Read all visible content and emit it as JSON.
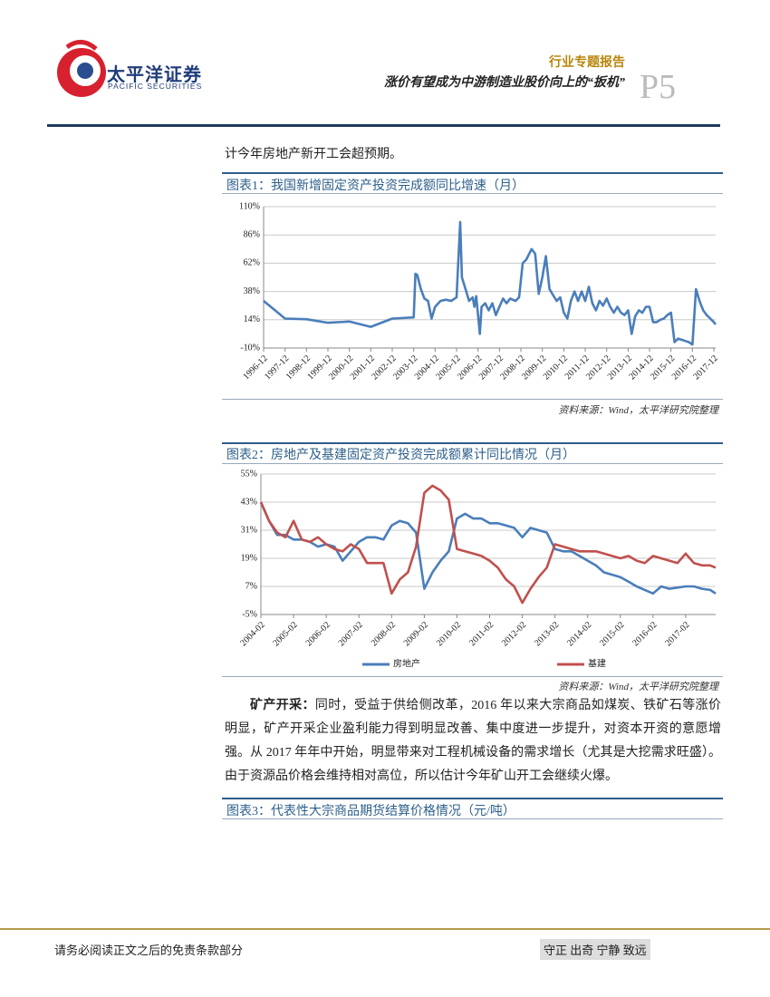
{
  "header": {
    "logo_cn": "太平洋证券",
    "logo_en": "PACIFIC SECURITIES",
    "report_type": "行业专题报告",
    "report_title": "涨价有望成为中游制造业股价向上的“扳机”",
    "page": "P5"
  },
  "intro": "计今年房地产新开工会超预期。",
  "chart1": {
    "type": "line",
    "title": "图表1：我国新增固定资产投资完成额同比增速（月）",
    "source": "资料来源：Wind，太平洋研究院整理",
    "ylim": [
      -10,
      110
    ],
    "yticks": [
      {
        "value": -10,
        "label": "-10%"
      },
      {
        "value": 14,
        "label": "14%"
      },
      {
        "value": 38,
        "label": "38%"
      },
      {
        "value": 62,
        "label": "62%"
      },
      {
        "value": 86,
        "label": "86%"
      },
      {
        "value": 110,
        "label": "110%"
      }
    ],
    "xlim": [
      "1996-12",
      "2018-01"
    ],
    "xticks": [
      "1996-12",
      "1997-12",
      "1998-12",
      "1999-12",
      "2000-12",
      "2001-12",
      "2002-12",
      "2003-12",
      "2004-12",
      "2005-12",
      "2006-12",
      "2007-12",
      "2008-12",
      "2009-12",
      "2010-12",
      "2011-12",
      "2012-12",
      "2013-12",
      "2014-12",
      "2015-12",
      "2016-12",
      "2017-12"
    ],
    "grid": true,
    "x": [
      "1996-12",
      "1997-12",
      "1998-12",
      "1999-12",
      "2000-12",
      "2001-12",
      "2002-12",
      "2003-12",
      "2004-01",
      "2004-02",
      "2004-04",
      "2004-06",
      "2004-08",
      "2004-10",
      "2004-12",
      "2005-03",
      "2005-06",
      "2005-09",
      "2005-12",
      "2006-02",
      "2006-03",
      "2006-05",
      "2006-07",
      "2006-09",
      "2006-10",
      "2006-11",
      "2007-01",
      "2007-02",
      "2007-04",
      "2007-06",
      "2007-08",
      "2007-10",
      "2007-12",
      "2008-02",
      "2008-04",
      "2008-06",
      "2008-09",
      "2008-11",
      "2009-01",
      "2009-03",
      "2009-06",
      "2009-08",
      "2009-10",
      "2009-12",
      "2010-02",
      "2010-04",
      "2010-06",
      "2010-08",
      "2010-10",
      "2010-12",
      "2011-02",
      "2011-04",
      "2011-06",
      "2011-08",
      "2011-10",
      "2011-12",
      "2012-02",
      "2012-04",
      "2012-06",
      "2012-08",
      "2012-10",
      "2012-12",
      "2013-02",
      "2013-04",
      "2013-06",
      "2013-08",
      "2013-10",
      "2013-12",
      "2014-02",
      "2014-04",
      "2014-06",
      "2014-08",
      "2014-10",
      "2014-12",
      "2015-02",
      "2015-04",
      "2015-06",
      "2015-08",
      "2015-10",
      "2015-12",
      "2016-02",
      "2016-04",
      "2016-06",
      "2016-08",
      "2016-10",
      "2016-12",
      "2017-02",
      "2017-04",
      "2017-06",
      "2017-08",
      "2017-10",
      "2017-12",
      "2018-01"
    ],
    "series": [
      {
        "color": "#4a7ebb",
        "values": [
          30,
          15,
          14.5,
          11.5,
          12.5,
          8,
          15,
          16,
          53,
          52,
          40,
          32,
          30,
          15,
          25,
          30,
          31,
          30,
          33,
          97,
          50,
          40,
          30,
          33,
          25,
          34,
          2,
          25,
          28,
          22,
          28,
          18,
          25,
          32,
          28,
          32,
          30,
          33,
          62,
          65,
          74,
          70,
          36,
          50,
          68,
          40,
          35,
          30,
          33,
          20,
          15,
          30,
          38,
          30,
          38,
          30,
          42,
          28,
          22,
          30,
          26,
          32,
          25,
          20,
          25,
          20,
          18,
          22,
          2,
          17,
          22,
          20,
          25,
          25,
          12,
          12,
          14,
          15,
          18,
          20,
          -5,
          -2,
          -3,
          -4,
          -5,
          -7,
          40,
          30,
          22,
          18,
          15,
          12,
          10
        ]
      }
    ]
  },
  "chart2": {
    "type": "line",
    "title": "图表2：房地产及基建固定资产投资完成额累计同比情况（月）",
    "source": "资料来源：Wind，太平洋研究院整理",
    "ylim": [
      -5,
      55
    ],
    "yticks": [
      {
        "value": -5,
        "label": "-5%"
      },
      {
        "value": 7,
        "label": "7%"
      },
      {
        "value": 19,
        "label": "19%"
      },
      {
        "value": 31,
        "label": "31%"
      },
      {
        "value": 43,
        "label": "43%"
      },
      {
        "value": 55,
        "label": "55%"
      }
    ],
    "xlim": [
      "2004-02",
      "2018-01"
    ],
    "xticks": [
      "2004-02",
      "2005-02",
      "2006-02",
      "2007-02",
      "2008-02",
      "2009-02",
      "2010-02",
      "2011-02",
      "2012-02",
      "2013-02",
      "2014-02",
      "2015-02",
      "2016-02",
      "2017-02"
    ],
    "grid": true,
    "x": [
      "2004-02",
      "2004-05",
      "2004-08",
      "2004-11",
      "2005-02",
      "2005-05",
      "2005-08",
      "2005-11",
      "2006-02",
      "2006-05",
      "2006-08",
      "2006-11",
      "2007-02",
      "2007-05",
      "2007-08",
      "2007-11",
      "2008-02",
      "2008-05",
      "2008-08",
      "2008-11",
      "2009-02",
      "2009-05",
      "2009-08",
      "2009-11",
      "2010-02",
      "2010-05",
      "2010-08",
      "2010-11",
      "2011-02",
      "2011-05",
      "2011-08",
      "2011-11",
      "2012-02",
      "2012-05",
      "2012-08",
      "2012-11",
      "2013-02",
      "2013-05",
      "2013-08",
      "2013-11",
      "2014-02",
      "2014-05",
      "2014-08",
      "2014-11",
      "2015-02",
      "2015-05",
      "2015-08",
      "2015-11",
      "2016-02",
      "2016-05",
      "2016-08",
      "2016-11",
      "2017-02",
      "2017-05",
      "2017-08",
      "2017-11",
      "2018-01"
    ],
    "series": [
      {
        "name": "房地产",
        "color": "#4a7ebb",
        "values": [
          43,
          35,
          29,
          29,
          27,
          27,
          26,
          24,
          25,
          24,
          18,
          22,
          26,
          28,
          28,
          27,
          33,
          35,
          34,
          30,
          6,
          13,
          18,
          22,
          36,
          38,
          36,
          36,
          34,
          34,
          33,
          32,
          28,
          32,
          31,
          30,
          23,
          22,
          22,
          20,
          18,
          16,
          13,
          12,
          11,
          9,
          7,
          5.5,
          4,
          7,
          6,
          6.5,
          7,
          7,
          6,
          5.5,
          4
        ]
      },
      {
        "name": "基建",
        "color": "#c0504d",
        "values": [
          43,
          35,
          30,
          28,
          35,
          27,
          26,
          28,
          25,
          23,
          22,
          25,
          23,
          17,
          17,
          17,
          4,
          10,
          13,
          24,
          47,
          50,
          48,
          44,
          23,
          22,
          21,
          20,
          18,
          15,
          10,
          7,
          0,
          6,
          11,
          15,
          25,
          24,
          23,
          22,
          22,
          22,
          21,
          20,
          19,
          20,
          18,
          17,
          20,
          19,
          18,
          17,
          21,
          17,
          16,
          16,
          15
        ]
      }
    ]
  },
  "paragraph": {
    "lead": "矿产开采：",
    "text": "同时，受益于供给侧改革，2016 年以来大宗商品如煤炭、铁矿石等涨价明显，矿产开采企业盈利能力得到明显改善、集中度进一步提升，对资本开资的意愿增强。从 2017 年年中开始，明显带来对工程机械设备的需求增长（尤其是大挖需求旺盛）。由于资源品价格会维持相对高位，所以估计今年矿山开工会继续火爆。"
  },
  "chart3": {
    "title": "图表3：代表性大宗商品期货结算价格情况（元/吨）"
  },
  "footer": {
    "disclaimer": "请务必阅读正文之后的免责条款部分",
    "motto": "守正 出奇 宁静 致远"
  }
}
